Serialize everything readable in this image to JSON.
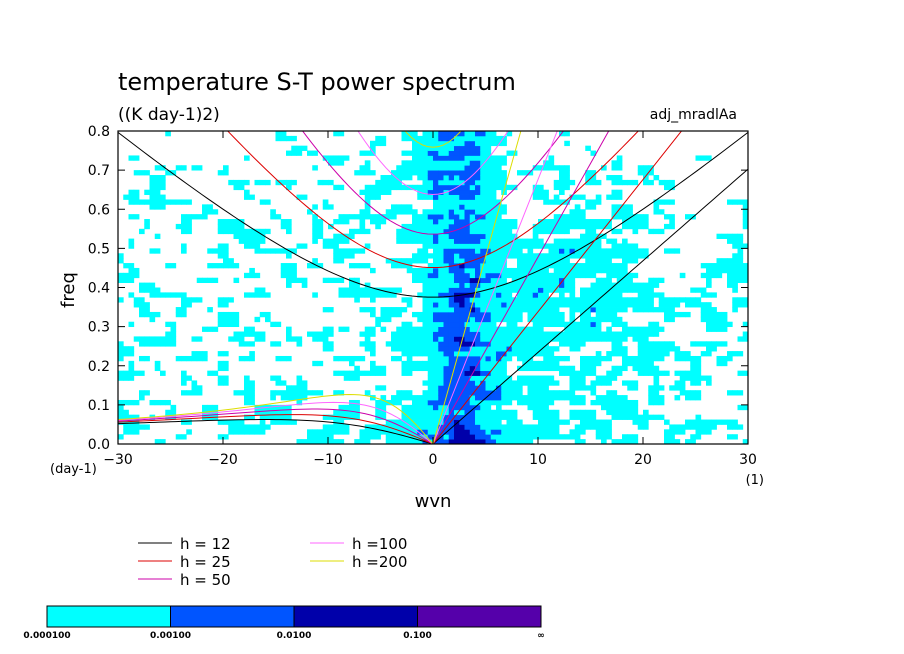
{
  "title": "temperature S-T power spectrum",
  "units": "((K day-1)2)",
  "dataset": "adj_mradlAa",
  "chart_data": {
    "type": "heatmap",
    "title": "temperature S-T power spectrum",
    "xlabel": "wvn",
    "ylabel": "freq",
    "xunit": "(1)",
    "yunit": "(day-1)",
    "xlim": [
      -30,
      30
    ],
    "ylim": [
      0,
      0.8
    ],
    "xticks": [
      -30,
      -20,
      -10,
      0,
      10,
      20,
      30
    ],
    "yticks": [
      0.0,
      0.1,
      0.2,
      0.3,
      0.4,
      0.5,
      0.6,
      0.7,
      0.8
    ],
    "xtick_labels": [
      "−30",
      "−20",
      "−10",
      "0",
      "10",
      "20",
      "30"
    ],
    "ytick_labels": [
      "0.0",
      "0.1",
      "0.2",
      "0.3",
      "0.4",
      "0.5",
      "0.6",
      "0.7",
      "0.8"
    ],
    "dispersion_curves": [
      {
        "label": "h = 12",
        "h": 12,
        "color": "#000000"
      },
      {
        "label": "h = 25",
        "h": 25,
        "color": "#dd0000"
      },
      {
        "label": "h = 50",
        "h": 50,
        "color": "#cc00aa"
      },
      {
        "label": "h =100",
        "h": 100,
        "color": "#ff66ff"
      },
      {
        "label": "h =200",
        "h": 200,
        "color": "#dddd00"
      }
    ],
    "contour_levels": [
      {
        "label": "0.000100",
        "color": "#00ffff"
      },
      {
        "label": "0.00100",
        "color": "#0055ff"
      },
      {
        "label": "0.0100",
        "color": "#0000aa"
      },
      {
        "label": "0.100",
        "color": "#5500aa"
      },
      {
        "label": "∞",
        "color": null
      }
    ],
    "grid": false
  }
}
